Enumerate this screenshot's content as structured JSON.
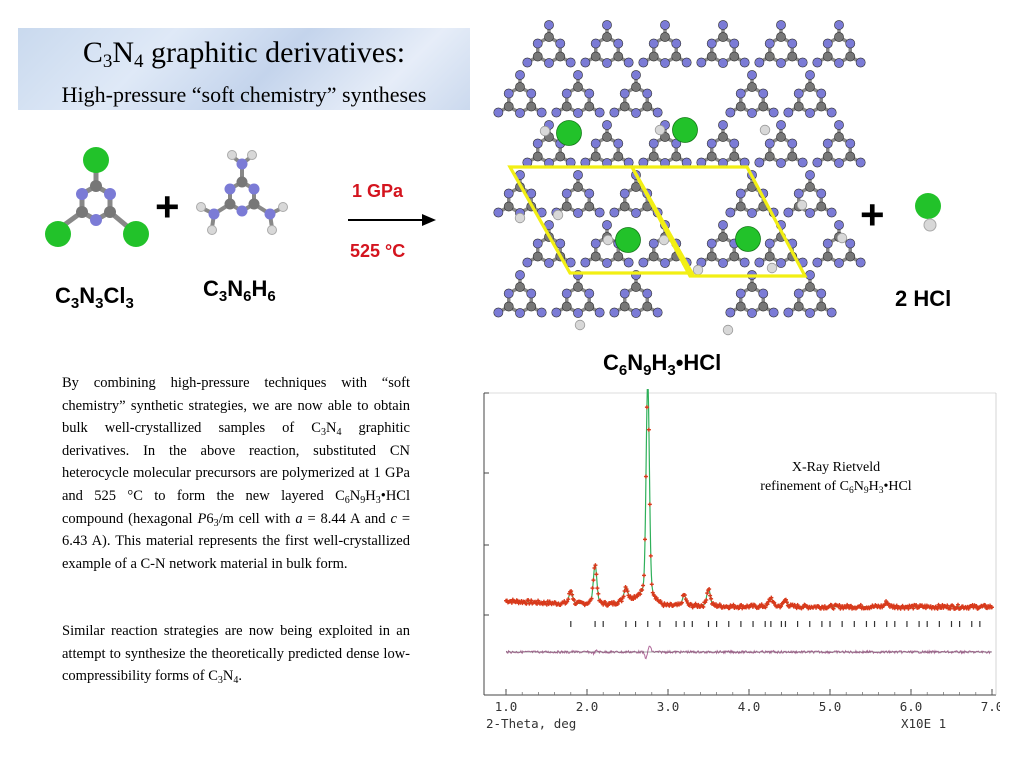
{
  "title": {
    "line1_prefix": "C",
    "line1_sub1": "3",
    "line1_mid": "N",
    "line1_sub2": "4",
    "line1_suffix": " graphitic derivatives:",
    "line2": "High-pressure “soft chemistry” syntheses"
  },
  "reaction": {
    "reactant1": {
      "p1": "C",
      "s1": "3",
      "p2": "N",
      "s2": "3",
      "p3": "Cl",
      "s3": "3"
    },
    "reactant2": {
      "p1": "C",
      "s1": "3",
      "p2": "N",
      "s2": "6",
      "p3": "H",
      "s3": "6"
    },
    "plus_sign": "+",
    "pressure": "1 GPa",
    "temperature": "525 °C",
    "product": {
      "p1": "C",
      "s1": "6",
      "p2": "N",
      "s2": "9",
      "p3": "H",
      "s3": "3",
      "p4": "•HCl"
    },
    "byproduct": "2 HCl"
  },
  "colors": {
    "carbon": "#777777",
    "nitrogen": "#7b7bd6",
    "hydrogen": "#d8d8d8",
    "chlorine": "#22c22a",
    "cell_outline": "#f2ef14",
    "condition_red": "#d4141e",
    "observed_red": "#d83a1c",
    "calc_green": "#2fb05a",
    "diff_purple": "#b06a9a"
  },
  "paragraphs": {
    "p1": {
      "a": "By combining high-pressure techniques with “soft chemistry” synthetic strategies, we are now able to obtain bulk well-crystallized samples of C",
      "a_s1": "3",
      "a2": "N",
      "a_s2": "4",
      "b": " graphitic derivatives.  In the above reaction, substituted CN heterocycle molecular precursors are polymerized at 1 GPa and 525 °C to form the new layered C",
      "b_s1": "6",
      "b2": "N",
      "b_s2": "9",
      "b3": "H",
      "b_s3": "3",
      "c": "•HCl compound (hexagonal ",
      "c_ital": "P",
      "c2": "6",
      "c_s": "3",
      "c3": "/m cell with ",
      "c_a": "a",
      "c4": " = 8.44 A and ",
      "c_c": "c",
      "c5": " = 6.43 A). This material represents the first well-crystallized example of a C-N network material in bulk form."
    },
    "p2": {
      "a": "Similar reaction strategies are now being exploited in an attempt to synthesize the theoretically predicted dense low-compressibility forms of C",
      "a_s1": "3",
      "a2": "N",
      "a_s2": "4",
      "a3": "."
    }
  },
  "plot_caption": {
    "line1": "X-Ray Rietveld",
    "line2_a": "refinement of C",
    "s1": "6",
    "l2": "N",
    "s2": "9",
    "l3": "H",
    "s3": "3",
    "l4": "•HCl"
  },
  "chart_data": {
    "type": "line",
    "title": "",
    "xlabel": "2-Theta, deg",
    "ylabel": "",
    "xlim": [
      1.0,
      7.0
    ],
    "x_ticks": [
      "1.0",
      "2.0",
      "3.0",
      "4.0",
      "5.0",
      "6.0",
      "7.0"
    ],
    "scale_note": "X10E  1",
    "peaks": [
      {
        "x": 1.8,
        "height": 0.06
      },
      {
        "x": 2.1,
        "height": 0.18
      },
      {
        "x": 2.48,
        "height": 0.06
      },
      {
        "x": 2.75,
        "height": 1.0
      },
      {
        "x": 3.2,
        "height": 0.05
      },
      {
        "x": 3.5,
        "height": 0.08
      },
      {
        "x": 4.27,
        "height": 0.04
      },
      {
        "x": 4.45,
        "height": 0.03
      },
      {
        "x": 5.7,
        "height": 0.02
      }
    ],
    "series": [
      {
        "name": "observed"
      },
      {
        "name": "calculated"
      },
      {
        "name": "difference"
      }
    ],
    "reflection_marks": [
      1.8,
      2.1,
      2.2,
      2.48,
      2.6,
      2.75,
      2.9,
      3.1,
      3.2,
      3.3,
      3.5,
      3.6,
      3.75,
      3.9,
      4.05,
      4.2,
      4.27,
      4.4,
      4.45,
      4.6,
      4.75,
      4.9,
      5.0,
      5.15,
      5.3,
      5.45,
      5.55,
      5.7,
      5.8,
      5.95,
      6.1,
      6.2,
      6.35,
      6.5,
      6.6,
      6.75,
      6.85
    ]
  }
}
